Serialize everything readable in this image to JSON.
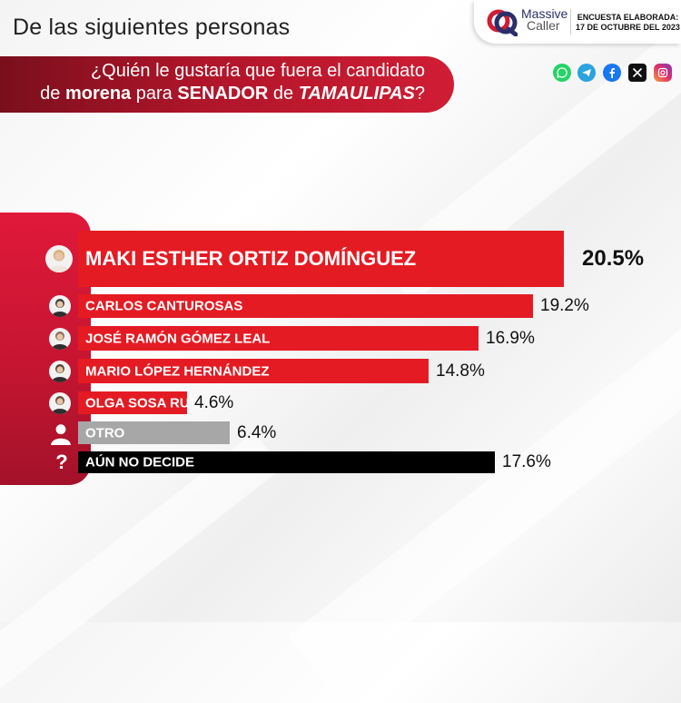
{
  "header": {
    "title": "De las siguientes personas",
    "question_line1": "¿Quién le gustaría que fuera el candidato",
    "question_line2_parts": [
      "de",
      "morena",
      "para",
      "SENADOR",
      "de",
      "TAMAULIPAS",
      "?"
    ]
  },
  "brand": {
    "name_line1": "Massive",
    "name_line2": "Caller",
    "survey_line1": "ENCUESTA ELABORADA:",
    "survey_line2": "17 DE OCTUBRE DEL 2023"
  },
  "social_icons": [
    "whatsapp-icon",
    "telegram-icon",
    "facebook-icon",
    "x-icon",
    "instagram-icon"
  ],
  "chart_data": {
    "type": "bar",
    "orientation": "horizontal",
    "categories": [
      "MAKI ESTHER ORTIZ DOMÍNGUEZ",
      "CARLOS CANTUROSAS",
      "JOSÉ RAMÓN GÓMEZ LEAL",
      "MARIO LÓPEZ HERNÁNDEZ",
      "OLGA SOSA RUÍZ",
      "OTRO",
      "AÚN NO DECIDE"
    ],
    "values": [
      20.5,
      19.2,
      16.9,
      14.8,
      4.6,
      6.4,
      17.6
    ],
    "value_labels": [
      "20.5%",
      "19.2%",
      "16.9%",
      "14.8%",
      "4.6%",
      "6.4%",
      "17.6%"
    ],
    "bar_colors": [
      "#e41b23",
      "#e41b23",
      "#e41b23",
      "#e41b23",
      "#e41b23",
      "#a7a7a7",
      "#000000"
    ],
    "icons": [
      "avatar-icon",
      "avatar-icon",
      "avatar-icon",
      "avatar-icon",
      "avatar-icon",
      "person-silhouette-icon",
      "question-mark-icon"
    ],
    "highlighted": 0
  }
}
